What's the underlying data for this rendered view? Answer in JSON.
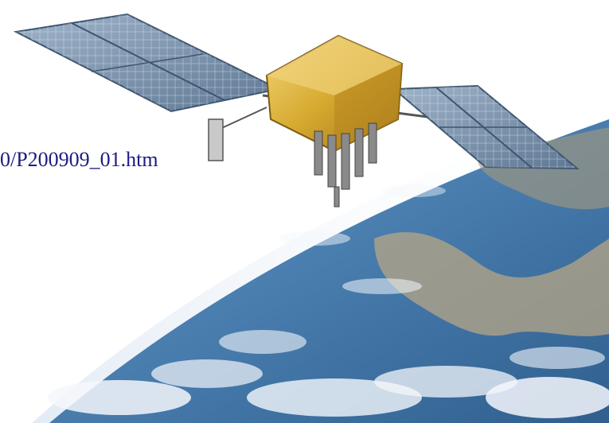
{
  "link": {
    "text": "0/P200909_01.htm"
  },
  "scene": {
    "subject_icon": "satellite-icon",
    "background_icon": "earth-icon",
    "colors": {
      "space": "#ffffff",
      "ocean": "#3f74a6",
      "ocean_light": "#8fb3d4",
      "land": "#b9a98a",
      "clouds": "#f2f5f9",
      "panel": "#6f8aa8",
      "gold_foil": "#d9b23a",
      "link": "#1c1c80"
    }
  }
}
